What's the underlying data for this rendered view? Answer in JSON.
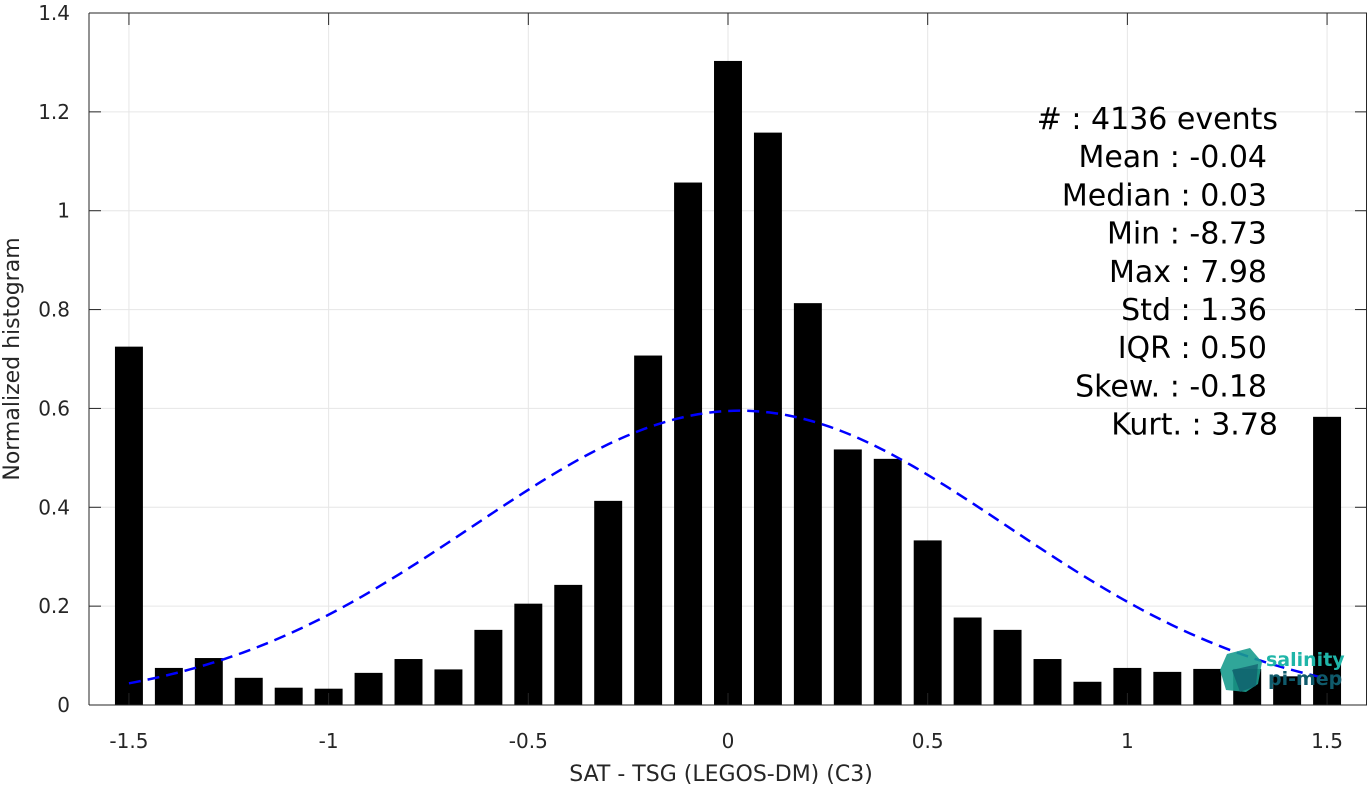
{
  "chart_data": {
    "type": "bar",
    "xlabel": "SAT - TSG (LEGOS-DM) (C3)",
    "ylabel": "Normalized histogram",
    "xlim": [
      -1.6,
      1.6
    ],
    "ylim": [
      0,
      1.4
    ],
    "xticks": [
      "-1.5",
      "-1",
      "-0.5",
      "0",
      "0.5",
      "1",
      "1.5"
    ],
    "xtick_values": [
      -1.5,
      -1,
      -0.5,
      0,
      0.5,
      1,
      1.5
    ],
    "yticks": [
      "0",
      "0.2",
      "0.4",
      "0.6",
      "0.8",
      "1",
      "1.2",
      "1.4"
    ],
    "ytick_values": [
      0,
      0.2,
      0.4,
      0.6,
      0.8,
      1,
      1.2,
      1.4
    ],
    "grid": true,
    "bin_width": 0.1,
    "x": [
      -1.5,
      -1.4,
      -1.3,
      -1.2,
      -1.1,
      -1.0,
      -0.9,
      -0.8,
      -0.7,
      -0.6,
      -0.5,
      -0.4,
      -0.3,
      -0.2,
      -0.1,
      0.0,
      0.1,
      0.2,
      0.3,
      0.4,
      0.5,
      0.6,
      0.7,
      0.8,
      0.9,
      1.0,
      1.1,
      1.2,
      1.3,
      1.4,
      1.5
    ],
    "values": [
      0.725,
      0.075,
      0.095,
      0.055,
      0.035,
      0.033,
      0.065,
      0.093,
      0.072,
      0.152,
      0.205,
      0.243,
      0.413,
      0.707,
      1.057,
      1.303,
      1.158,
      0.813,
      0.517,
      0.498,
      0.333,
      0.177,
      0.152,
      0.093,
      0.047,
      0.075,
      0.067,
      0.073,
      0.073,
      0.058,
      0.583
    ],
    "bar_color": "#000000",
    "fit_curve": {
      "type": "gaussian",
      "color": "#0000ff",
      "style": "dashed",
      "mean": 0.03,
      "sigma": 0.67,
      "x_range": [
        -1.5,
        1.5
      ]
    },
    "stats": [
      "#  : 4136 events",
      "Mean : -0.04",
      "Median : 0.03",
      "Min : -8.73",
      "Max : 7.98",
      "Std : 1.36",
      "IQR : 0.50",
      "Skew. : -0.18",
      "Kurt. : 3.78"
    ]
  },
  "logo": {
    "line1": "salinity",
    "line2": "pi-mep",
    "color1": "#1fb5a8",
    "color2": "#0f5a6b"
  }
}
